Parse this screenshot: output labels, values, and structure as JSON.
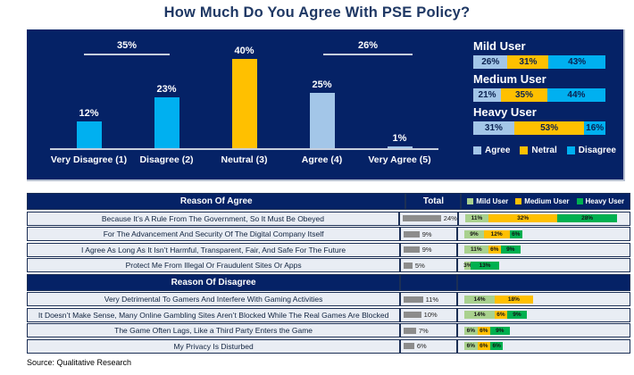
{
  "title": "How Much Do You Agree With PSE Policy?",
  "source": "Source: Qualitative Research",
  "colors": {
    "navy": "#052266",
    "bright_blue": "#00b0f0",
    "light_blue": "#a3c6e8",
    "yellow": "#ffc000",
    "mild_green": "#a9d18e",
    "medium_yellow": "#ffc000",
    "heavy_green": "#00b050",
    "total_gray": "#8c8c8c"
  },
  "main_chart": {
    "bars": [
      {
        "category": "Very Disagree (1)",
        "value": 12,
        "label": "12%",
        "color": "#00b0f0"
      },
      {
        "category": "Disagree (2)",
        "value": 23,
        "label": "23%",
        "color": "#00b0f0"
      },
      {
        "category": "Neutral (3)",
        "value": 40,
        "label": "40%",
        "color": "#ffc000"
      },
      {
        "category": "Agree (4)",
        "value": 25,
        "label": "25%",
        "color": "#a3c6e8"
      },
      {
        "category": "Very Agree (5)",
        "value": 1,
        "label": "1%",
        "color": "#a3c6e8"
      }
    ],
    "brackets": [
      {
        "label": "35%",
        "spans": "Very Disagree (1) + Disagree (2)"
      },
      {
        "label": "26%",
        "spans": "Agree (4) + Very Agree (5)"
      }
    ]
  },
  "user_groups": {
    "groups": [
      {
        "name": "Mild User",
        "segments": [
          {
            "series": "Agree",
            "value": 26,
            "label": "26%"
          },
          {
            "series": "Netral",
            "value": 31,
            "label": "31%"
          },
          {
            "series": "Disagree",
            "value": 43,
            "label": "43%"
          }
        ]
      },
      {
        "name": "Medium User",
        "segments": [
          {
            "series": "Agree",
            "value": 21,
            "label": "21%"
          },
          {
            "series": "Netral",
            "value": 35,
            "label": "35%"
          },
          {
            "series": "Disagree",
            "value": 44,
            "label": "44%"
          }
        ]
      },
      {
        "name": "Heavy User",
        "segments": [
          {
            "series": "Agree",
            "value": 31,
            "label": "31%"
          },
          {
            "series": "Netral",
            "value": 53,
            "label": "53%"
          },
          {
            "series": "Disagree",
            "value": 16,
            "label": "16%"
          }
        ]
      }
    ],
    "legend": [
      {
        "label": "Agree",
        "color": "#a3c6e8"
      },
      {
        "label": "Netral",
        "color": "#ffc000"
      },
      {
        "label": "Disagree",
        "color": "#00b0f0"
      }
    ]
  },
  "table": {
    "total_header": "Total",
    "legend": [
      {
        "label": "Mild User",
        "color": "#a9d18e"
      },
      {
        "label": "Medium User",
        "color": "#ffc000"
      },
      {
        "label": "Heavy User",
        "color": "#00b050"
      }
    ],
    "sections": [
      {
        "header": "Reason Of Agree",
        "rows": [
          {
            "reason": "Because It’s A Rule From The Government, So It Must Be Obeyed",
            "total": 24,
            "total_label": "24%",
            "mild": {
              "value": 11,
              "label": "11%"
            },
            "medium": {
              "value": 32,
              "label": "32%"
            },
            "heavy": {
              "value": 28,
              "label": "28%"
            }
          },
          {
            "reason": "For The Advancement And Security Of The Digital Company Itself",
            "total": 9,
            "total_label": "9%",
            "mild": {
              "value": 9,
              "label": "9%"
            },
            "medium": {
              "value": 12,
              "label": "12%"
            },
            "heavy": {
              "value": 6,
              "label": "6%"
            }
          },
          {
            "reason": "I Agree As Long As It Isn’t Harmful, Transparent, Fair, And Safe For The Future",
            "total": 9,
            "total_label": "9%",
            "mild": {
              "value": 11,
              "label": "11%"
            },
            "medium": {
              "value": 6,
              "label": "6%"
            },
            "heavy": {
              "value": 9,
              "label": "9%"
            }
          },
          {
            "reason": "Protect Me From Illegal Or Fraudulent Sites Or Apps",
            "total": 5,
            "total_label": "5%",
            "mild": {
              "value": 3,
              "label": "3%"
            },
            "heavy": {
              "value": 13,
              "label": "13%"
            }
          }
        ]
      },
      {
        "header": "Reason Of Disagree",
        "rows": [
          {
            "reason": "Very Detrimental To Gamers And Interfere With Gaming Activities",
            "total": 11,
            "total_label": "11%",
            "mild": {
              "value": 14,
              "label": "14%"
            },
            "medium": {
              "value": 18,
              "label": "18%"
            }
          },
          {
            "reason": "It Doesn’t Make Sense, Many Online Gambling Sites Aren’t Blocked While The Real Games Are Blocked",
            "total": 10,
            "total_label": "10%",
            "mild": {
              "value": 14,
              "label": "14%"
            },
            "medium": {
              "value": 6,
              "label": "6%"
            },
            "heavy": {
              "value": 9,
              "label": "9%"
            }
          },
          {
            "reason": "The Game Often Lags, Like a Third Party Enters the Game",
            "total": 7,
            "total_label": "7%",
            "mild": {
              "value": 6,
              "label": "6%"
            },
            "medium": {
              "value": 6,
              "label": "6%"
            },
            "heavy": {
              "value": 9,
              "label": "9%"
            }
          },
          {
            "reason": "My Privacy Is Disturbed",
            "total": 6,
            "total_label": "6%",
            "mild": {
              "value": 6,
              "label": "6%"
            },
            "medium": {
              "value": 6,
              "label": "6%"
            },
            "heavy": {
              "value": 6,
              "label": "6%"
            }
          }
        ]
      }
    ]
  },
  "chart_data": [
    {
      "type": "bar",
      "title": "How Much Do You Agree With PSE Policy?",
      "categories": [
        "Very Disagree (1)",
        "Disagree (2)",
        "Neutral (3)",
        "Agree (4)",
        "Very Agree (5)"
      ],
      "values": [
        12,
        23,
        40,
        25,
        1
      ],
      "unit": "%",
      "ylim": [
        0,
        45
      ],
      "grid": false,
      "bar_colors": [
        "#00b0f0",
        "#00b0f0",
        "#ffc000",
        "#a3c6e8",
        "#a3c6e8"
      ],
      "annotations": [
        {
          "text": "35%",
          "note": "combined Very Disagree + Disagree"
        },
        {
          "text": "26%",
          "note": "combined Agree + Very Agree"
        }
      ]
    },
    {
      "type": "bar",
      "subtype": "horizontal-stacked-100pct",
      "categories": [
        "Mild User",
        "Medium User",
        "Heavy User"
      ],
      "series": [
        {
          "name": "Agree",
          "values": [
            26,
            21,
            31
          ]
        },
        {
          "name": "Netral",
          "values": [
            31,
            35,
            53
          ]
        },
        {
          "name": "Disagree",
          "values": [
            43,
            44,
            16
          ]
        }
      ],
      "unit": "%",
      "legend_position": "bottom"
    },
    {
      "type": "table",
      "columns": [
        "Reason",
        "Total",
        "Mild User",
        "Medium User",
        "Heavy User"
      ],
      "unit": "%",
      "sections": [
        {
          "name": "Reason Of Agree",
          "rows": [
            [
              "Because It’s A Rule From The Government, So It Must Be Obeyed",
              24,
              11,
              32,
              28
            ],
            [
              "For The Advancement And Security Of The Digital Company Itself",
              9,
              9,
              12,
              6
            ],
            [
              "I Agree As Long As It Isn’t Harmful, Transparent, Fair, And Safe For The Future",
              9,
              11,
              6,
              9
            ],
            [
              "Protect Me From Illegal Or Fraudulent Sites Or Apps",
              5,
              3,
              null,
              13
            ]
          ]
        },
        {
          "name": "Reason Of Disagree",
          "rows": [
            [
              "Very Detrimental To Gamers And Interfere With Gaming Activities",
              11,
              14,
              18,
              null
            ],
            [
              "It Doesn’t Make Sense, Many Online Gambling Sites Aren’t Blocked While The Real Games Are Blocked",
              10,
              14,
              6,
              9
            ],
            [
              "The Game Often Lags, Like a Third Party Enters the Game",
              7,
              6,
              6,
              9
            ],
            [
              "My Privacy Is Disturbed",
              6,
              6,
              6,
              6
            ]
          ]
        }
      ]
    }
  ]
}
